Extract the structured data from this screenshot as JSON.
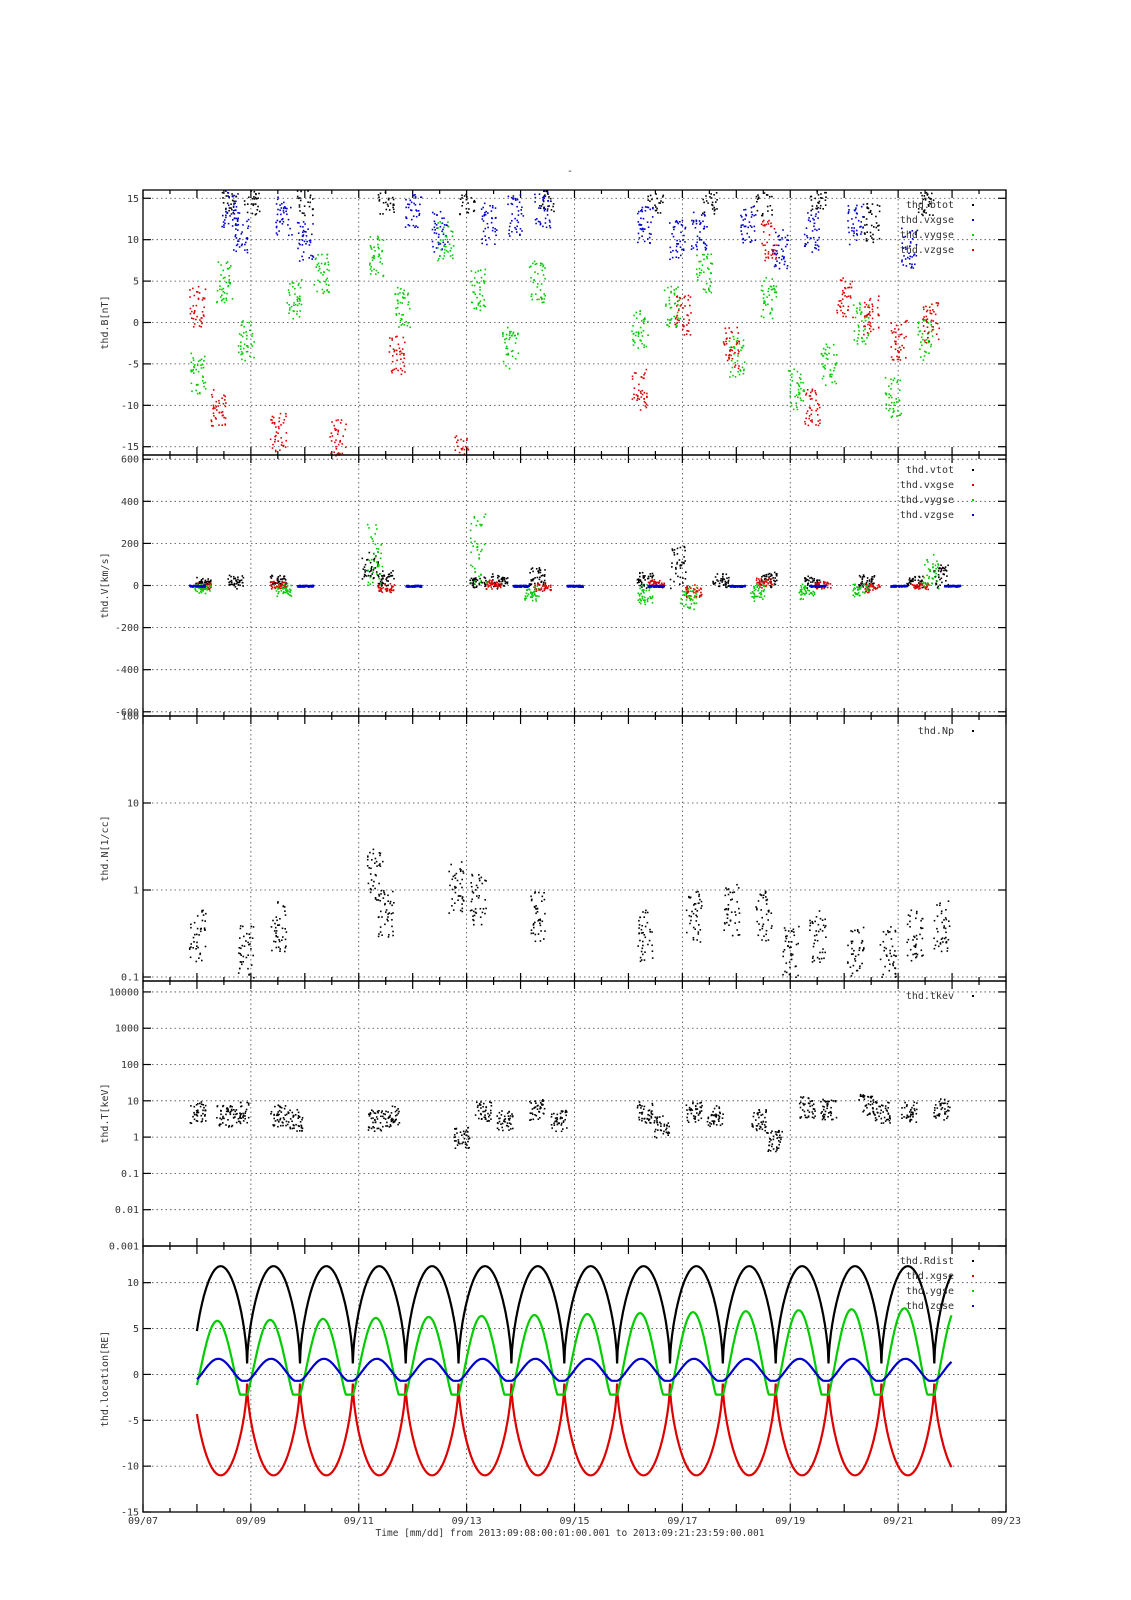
{
  "figure": {
    "title": "-",
    "xaxis": {
      "label": "Time [mm/dd]  from 2013:09:08:00:01:00.001  to  2013:09:21:23:59:00.001",
      "ticks": [
        "09/07",
        "09/09",
        "09/11",
        "09/13",
        "09/15",
        "09/17",
        "09/19",
        "09/21",
        "09/23"
      ]
    },
    "colors": {
      "black": "#000000",
      "red": "#dd0000",
      "green": "#00cc00",
      "blue": "#0000cc"
    }
  },
  "chart_data": [
    {
      "type": "scatter",
      "ylabel": "thd.B[nT]",
      "ylim": [
        -16,
        16
      ],
      "yticks": [
        "15",
        "10",
        "5",
        "0",
        "-5",
        "-10",
        "-15"
      ],
      "legend_placement": "top-right",
      "x_range_days": [
        "2013-09-07",
        "2013-09-23"
      ],
      "series": [
        {
          "name": "thd.btot",
          "color": "#000000",
          "x": [
            8.6,
            9.0,
            10.0,
            11.5,
            13.0,
            14.5,
            16.5,
            17.5,
            18.5,
            19.5,
            20.5,
            21.5
          ],
          "y": [
            15.5,
            15.6,
            15.5,
            15.7,
            15.6,
            15.5,
            15.6,
            15.4,
            15.5,
            15.6,
            12,
            15.5
          ]
        },
        {
          "name": "thd.vxgse",
          "color": "#0000cc",
          "x": [
            8.6,
            8.8,
            9.6,
            10.0,
            12.0,
            12.5,
            13.4,
            13.9,
            14.4,
            16.3,
            16.9,
            17.3,
            18.2,
            18.8,
            19.4,
            20.2,
            21.2
          ],
          "y": [
            14,
            11,
            13,
            10,
            14,
            11,
            12,
            13,
            14,
            12,
            10,
            11,
            12,
            9,
            11,
            12,
            9
          ]
        },
        {
          "name": "thd.vygse",
          "color": "#00cc00",
          "x": [
            8.0,
            8.5,
            8.9,
            9.8,
            10.3,
            11.3,
            11.8,
            12.6,
            13.2,
            13.8,
            14.3,
            16.2,
            16.8,
            17.4,
            18.0,
            18.6,
            19.1,
            19.7,
            20.3,
            20.9,
            21.5
          ],
          "y": [
            -6,
            5,
            -2,
            3,
            6,
            8,
            2,
            10,
            4,
            -3,
            5,
            -1,
            2,
            6,
            -4,
            3,
            -8,
            -5,
            0,
            -9,
            -2
          ]
        },
        {
          "name": "thd.vzgse",
          "color": "#dd0000",
          "x": [
            8.0,
            8.4,
            9.5,
            10.6,
            11.7,
            12.9,
            16.2,
            17.0,
            17.9,
            18.6,
            19.4,
            20.0,
            20.5,
            21.0,
            21.6
          ],
          "y": [
            2,
            -10,
            -13,
            -14,
            -4,
            -16,
            -8,
            1,
            -3,
            10,
            -10,
            3,
            1,
            -2,
            0
          ]
        }
      ]
    },
    {
      "type": "scatter",
      "ylabel": "thd.V[km/s]",
      "ylim": [
        -620,
        620
      ],
      "yticks": [
        "600",
        "400",
        "200",
        "0",
        "-200",
        "-400",
        "-600"
      ],
      "legend_placement": "top-right",
      "x_range_days": [
        "2013-09-07",
        "2013-09-23"
      ],
      "series": [
        {
          "name": "thd.vtot",
          "color": "#000000",
          "x": [
            8.1,
            8.7,
            9.5,
            11.2,
            11.5,
            13.2,
            13.6,
            14.3,
            16.3,
            16.9,
            17.7,
            18.6,
            19.4,
            20.4,
            21.3,
            21.8
          ],
          "y": [
            30,
            40,
            50,
            150,
            60,
            40,
            50,
            80,
            60,
            200,
            50,
            70,
            40,
            50,
            40,
            100
          ]
        },
        {
          "name": "thd.vxgse",
          "color": "#dd0000",
          "x": [
            8.1,
            9.5,
            11.5,
            13.5,
            14.4,
            16.5,
            17.2,
            18.5,
            19.6,
            20.5,
            21.4
          ],
          "y": [
            0,
            10,
            -30,
            20,
            -10,
            20,
            -50,
            40,
            10,
            -20,
            0
          ]
        },
        {
          "name": "thd.vygse",
          "color": "#00cc00",
          "x": [
            8.1,
            9.6,
            11.3,
            13.2,
            14.2,
            16.3,
            17.1,
            18.4,
            19.3,
            20.3,
            21.6
          ],
          "y": [
            -20,
            -40,
            300,
            350,
            -60,
            -80,
            -110,
            -60,
            -50,
            -40,
            140
          ]
        },
        {
          "name": "thd.vzgse",
          "color": "#0000cc",
          "x": [
            8.0,
            10.0,
            12.0,
            14.0,
            15.0,
            16.5,
            18.0,
            19.5,
            21.0,
            22.0
          ],
          "y": [
            0,
            0,
            0,
            0,
            0,
            0,
            0,
            0,
            0,
            0
          ]
        }
      ]
    },
    {
      "type": "scatter",
      "ylabel": "thd.N[1/cc]",
      "yscale": "log",
      "ylim": [
        0.09,
        100
      ],
      "yticks": [
        "100",
        "10",
        "1",
        "0.1"
      ],
      "legend_placement": "top-right",
      "x_range_days": [
        "2013-09-07",
        "2013-09-23"
      ],
      "series": [
        {
          "name": "thd.Np",
          "color": "#000000",
          "x": [
            8.0,
            8.9,
            9.5,
            11.3,
            11.5,
            12.8,
            13.2,
            14.3,
            16.3,
            17.2,
            17.9,
            18.5,
            19.0,
            19.5,
            20.2,
            20.8,
            21.3,
            21.8
          ],
          "y": [
            0.3,
            0.2,
            0.4,
            1.5,
            0.5,
            1.1,
            0.8,
            0.5,
            0.3,
            0.5,
            0.6,
            0.5,
            0.2,
            0.3,
            0.2,
            0.2,
            0.3,
            0.4
          ]
        }
      ]
    },
    {
      "type": "scatter",
      "ylabel": "thd.T[keV]",
      "yscale": "log",
      "ylim": [
        0.001,
        20000
      ],
      "yticks": [
        "10000",
        "1000",
        "100",
        "10",
        "1",
        "0.1",
        "0.01",
        "0.001"
      ],
      "legend_placement": "top-right",
      "x_range_days": [
        "2013-09-07",
        "2013-09-23"
      ],
      "series": [
        {
          "name": "thd.tkev",
          "color": "#000000",
          "x": [
            8.0,
            8.5,
            8.8,
            9.5,
            9.8,
            11.3,
            11.6,
            12.9,
            13.3,
            13.7,
            14.3,
            14.7,
            16.3,
            16.6,
            17.2,
            17.6,
            18.4,
            18.7,
            19.3,
            19.7,
            20.4,
            20.7,
            21.2,
            21.8
          ],
          "y": [
            5,
            4,
            5,
            4,
            3,
            3,
            4,
            1,
            5,
            3,
            6,
            3,
            5,
            2,
            5,
            4,
            3,
            0.8,
            7,
            6,
            8,
            5,
            5,
            6
          ]
        }
      ]
    },
    {
      "type": "line",
      "ylabel": "thd.location[RE]",
      "ylim": [
        -15,
        14
      ],
      "yticks": [
        "10",
        "5",
        "0",
        "-5",
        "-10",
        "-15"
      ],
      "legend_placement": "top-right",
      "x_range_days": [
        "2013-09-07",
        "2013-09-23"
      ],
      "orbit_period_days": 0.98,
      "series": [
        {
          "name": "thd.Rdist",
          "color": "#000000",
          "apogee": 11.8,
          "perigee": 1.2
        },
        {
          "name": "thd.xgse",
          "color": "#dd0000",
          "apogee": -11.0,
          "perigee": -1.0
        },
        {
          "name": "thd.ygse",
          "color": "#00cc00",
          "apogee_start": 5.8,
          "apogee_end": 7.3,
          "perigee": -2.2
        },
        {
          "name": "thd.zgse",
          "color": "#0000cc",
          "apogee": 1.7,
          "perigee": -0.7
        }
      ]
    }
  ]
}
